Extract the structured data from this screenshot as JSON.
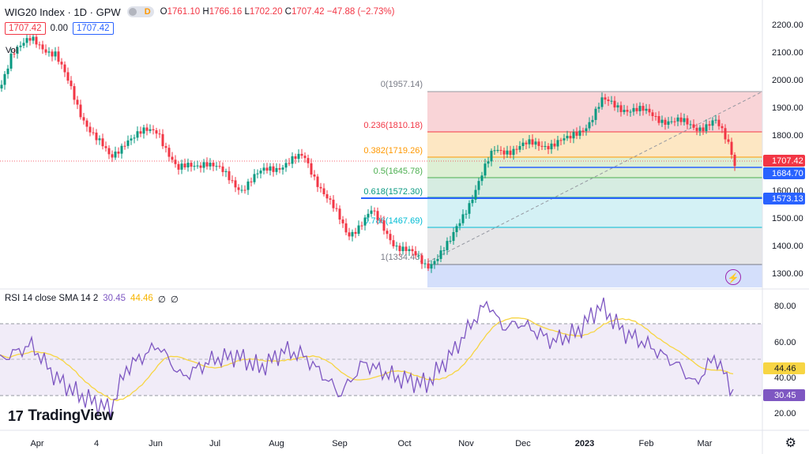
{
  "header": {
    "symbol": "WIG20 Index · 1D · GPW",
    "badge": "D",
    "open_label": "O",
    "open": "1761.10",
    "high_label": "H",
    "high": "1766.16",
    "low_label": "L",
    "low": "1702.20",
    "close_label": "C",
    "close": "1707.42",
    "change": "−47.88 (−2.73%)"
  },
  "quote_row": {
    "sell": "1707.42",
    "spread": "0.00",
    "buy": "1707.42"
  },
  "volume_label": "Vol",
  "rsi": {
    "label": "RSI 14 close SMA 14 2",
    "value": "30.45",
    "sma": "44.46",
    "extra1": "∅",
    "extra2": "∅",
    "color": "#7e57c2",
    "sma_color": "#f7d543"
  },
  "price_axis": {
    "ticks": [
      "2200.00",
      "2100.00",
      "2000.00",
      "1900.00",
      "1800.00",
      "1700.00",
      "1600.00",
      "1500.00",
      "1400.00",
      "1300.00"
    ],
    "current_price": "1707.42",
    "line1": "1684.70",
    "line2": "1573.13"
  },
  "rsi_axis": {
    "ticks": [
      "80.00",
      "60.00",
      "40.00",
      "20.00"
    ],
    "sma_tag": "44.46",
    "rsi_tag": "30.45"
  },
  "time_axis": [
    "Apr",
    "4",
    "Jun",
    "Jul",
    "Aug",
    "Sep",
    "Oct",
    "Nov",
    "Dec",
    "2023",
    "Feb",
    "Mar"
  ],
  "fib_levels": [
    {
      "label": "0(1957.14)",
      "color": "#787b86"
    },
    {
      "label": "0.236(1810.18)",
      "color": "#f23645"
    },
    {
      "label": "0.382(1719.26)",
      "color": "#ff9800"
    },
    {
      "label": "0.5(1645.78)",
      "color": "#4caf50"
    },
    {
      "label": "0.618(1572.30)",
      "color": "#089981"
    },
    {
      "label": "0.786(1467.69)",
      "color": "#00bcd4"
    },
    {
      "label": "1(1334.43)",
      "color": "#787b86"
    }
  ],
  "branding": {
    "logo_text": "TradingView"
  },
  "colors": {
    "up": "#089981",
    "down": "#f23645",
    "blue_line": "#2962ff"
  }
}
